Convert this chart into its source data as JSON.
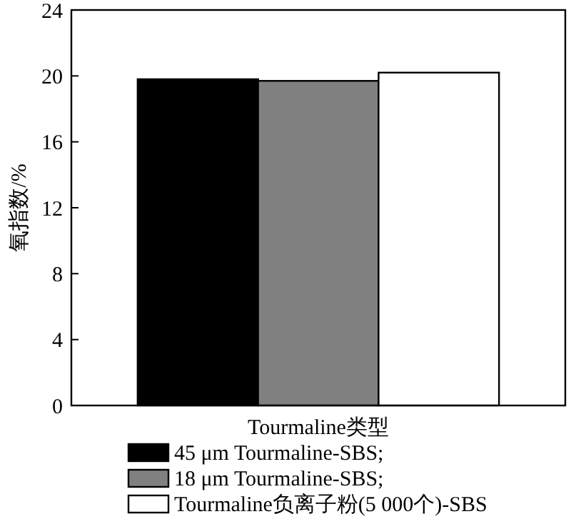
{
  "chart_data": {
    "type": "bar",
    "xlabel": "Tourmaline类型",
    "ylabel": "氧指数/%",
    "categories": [
      null
    ],
    "series": [
      {
        "name": "45 μm Tourmaline-SBS;",
        "color": "#000000",
        "values": [
          19.8
        ]
      },
      {
        "name": "18 μm Tourmaline-SBS;",
        "color": "#808080",
        "values": [
          19.7
        ]
      },
      {
        "name": "Tourmaline负离子粉(5 000个)-SBS",
        "color": "#ffffff",
        "values": [
          20.2
        ]
      }
    ],
    "ylim": [
      0,
      24
    ],
    "yticks": [
      0,
      4,
      8,
      12,
      16,
      20,
      24
    ],
    "grid": false,
    "legend": "bottom"
  }
}
